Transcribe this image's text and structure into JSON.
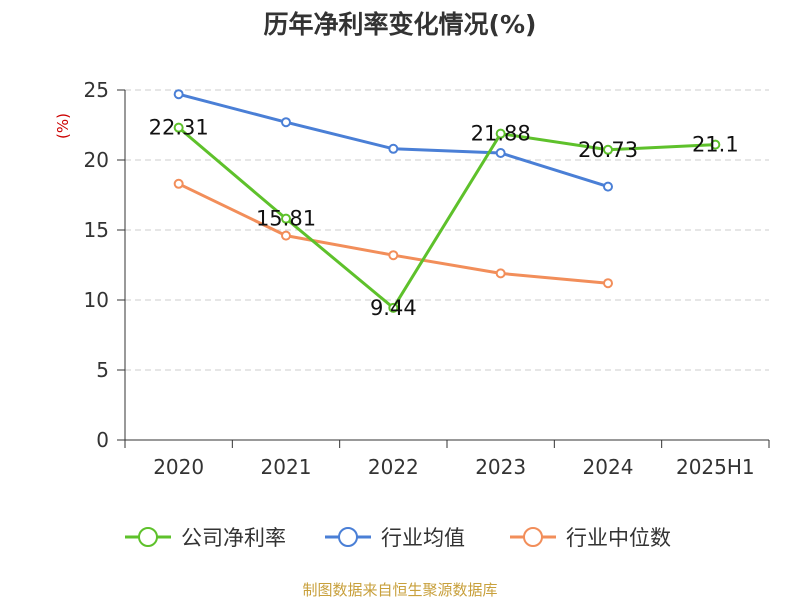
{
  "chart_data": {
    "type": "line",
    "title": "历年净利率变化情况(%)",
    "ylabel": "(%)",
    "xlabel": "",
    "categories": [
      "2020",
      "2021",
      "2022",
      "2023",
      "2024",
      "2025H1"
    ],
    "ylim": [
      0,
      25
    ],
    "yticks": [
      0,
      5,
      10,
      15,
      20,
      25
    ],
    "grid": true,
    "legend_position": "bottom",
    "series": [
      {
        "name": "公司净利率",
        "color": "#5ec12b",
        "values": [
          22.31,
          15.81,
          9.44,
          21.88,
          20.73,
          21.1
        ],
        "labels": [
          "22.31",
          "15.81",
          "9.44",
          "21.88",
          "20.73",
          "21.1"
        ]
      },
      {
        "name": "行业均值",
        "color": "#4a7fd6",
        "values": [
          24.7,
          22.7,
          20.8,
          20.5,
          18.1,
          null
        ]
      },
      {
        "name": "行业中位数",
        "color": "#f28e5a",
        "values": [
          18.3,
          14.6,
          13.2,
          11.9,
          11.2,
          null
        ]
      }
    ]
  },
  "source": "制图数据来自恒生聚源数据库"
}
